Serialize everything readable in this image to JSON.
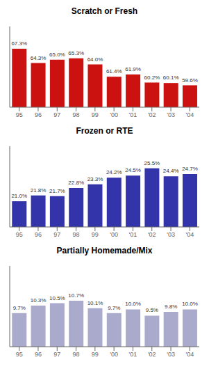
{
  "chart_data": [
    {
      "type": "bar",
      "annotations": [
        "Scratch or Fresh"
      ],
      "categories": [
        "95",
        "96",
        "97",
        "98",
        "99",
        "'00",
        "'01",
        "'02",
        "'03",
        "'04"
      ],
      "values": [
        67.3,
        64.3,
        65.0,
        65.3,
        64.0,
        61.4,
        61.9,
        60.2,
        60.1,
        59.6
      ],
      "value_labels": [
        "67.3%",
        "64.3%",
        "65.0%",
        "65.3%",
        "64.0%",
        "61.4%",
        "61.9%",
        "60.2%",
        "60.1%",
        "59.6%"
      ],
      "color": "#CC1111",
      "ylim": [
        55,
        72
      ],
      "data_labels": true,
      "tick_labels": "x",
      "grid": false
    },
    {
      "type": "bar",
      "annotations": [
        "Frozen or RTE"
      ],
      "categories": [
        "95",
        "96",
        "97",
        "98",
        "99",
        "'00",
        "'01",
        "'02",
        "'03",
        "'04"
      ],
      "values": [
        21.0,
        21.8,
        21.7,
        22.8,
        23.3,
        24.2,
        24.5,
        25.5,
        24.4,
        24.7
      ],
      "value_labels": [
        "21.0%",
        "21.8%",
        "21.7%",
        "22.8%",
        "23.3%",
        "24.2%",
        "24.5%",
        "25.5%",
        "24.4%",
        "24.7%"
      ],
      "color": "#3333AA",
      "ylim": [
        17.5,
        28.5
      ],
      "data_labels": true,
      "tick_labels": "x",
      "grid": false
    },
    {
      "type": "bar",
      "annotations": [
        "Partially Homemade/Mix"
      ],
      "categories": [
        "95",
        "96",
        "97",
        "98",
        "99",
        "'00",
        "'01",
        "'02",
        "'03",
        "'04"
      ],
      "values": [
        9.7,
        10.3,
        10.5,
        10.7,
        10.1,
        9.7,
        10.0,
        9.5,
        9.8,
        10.0
      ],
      "value_labels": [
        "9.7%",
        "10.3%",
        "10.5%",
        "10.7%",
        "10.1%",
        "9.7%",
        "10.0%",
        "9.5%",
        "9.8%",
        "10.0%"
      ],
      "color": "#AAAACC",
      "ylim": [
        7.0,
        13.5
      ],
      "data_labels": true,
      "tick_labels": "x",
      "grid": false
    }
  ]
}
